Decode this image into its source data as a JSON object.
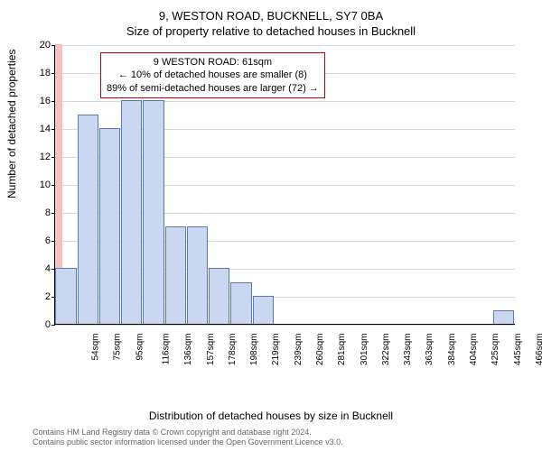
{
  "header": {
    "address": "9, WESTON ROAD, BUCKNELL, SY7 0BA",
    "subtitle": "Size of property relative to detached houses in Bucknell"
  },
  "chart": {
    "type": "histogram",
    "ylabel": "Number of detached properties",
    "xlabel": "Distribution of detached houses by size in Bucknell",
    "ylim": [
      0,
      20
    ],
    "ytick_step": 2,
    "grid_color": "#d9d9d9",
    "bar_fill": "#c9d8f0",
    "bar_stroke": "#5b7bb4",
    "highlight_fill": "#f4c2c2",
    "background": "#ffffff",
    "categories": [
      "54sqm",
      "75sqm",
      "95sqm",
      "116sqm",
      "136sqm",
      "157sqm",
      "178sqm",
      "198sqm",
      "219sqm",
      "239sqm",
      "260sqm",
      "281sqm",
      "301sqm",
      "322sqm",
      "343sqm",
      "363sqm",
      "384sqm",
      "404sqm",
      "425sqm",
      "445sqm",
      "466sqm"
    ],
    "values": [
      4,
      15,
      14,
      16,
      16,
      7,
      7,
      4,
      3,
      2,
      0,
      0,
      0,
      0,
      0,
      0,
      0,
      0,
      0,
      0,
      1
    ],
    "highlight": {
      "index": 0,
      "proportion": 0.35,
      "height": 20
    },
    "bar_width": 0.96
  },
  "callout": {
    "border_color": "#cc0000",
    "line1": "9 WESTON ROAD: 61sqm",
    "line2": "← 10% of detached houses are smaller (8)",
    "line3": "89% of semi-detached houses are larger (72) →"
  },
  "footer": {
    "line1": "Contains HM Land Registry data © Crown copyright and database right 2024.",
    "line2": "Contains public sector information licensed under the Open Government Licence v3.0."
  }
}
